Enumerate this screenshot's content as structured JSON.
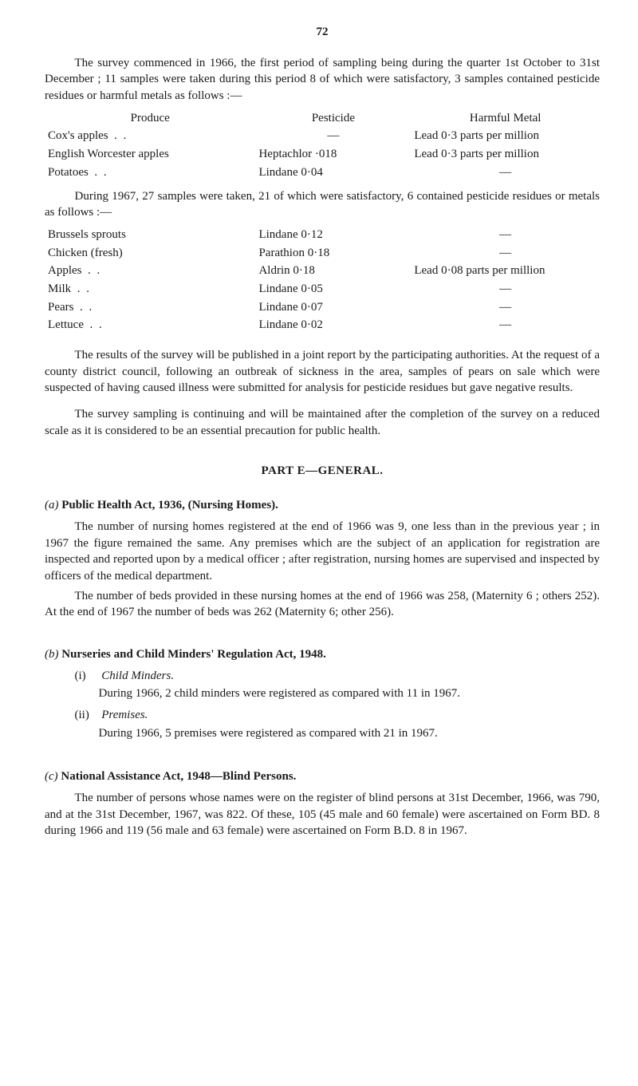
{
  "page_number": "72",
  "intro_paragraph": "The survey commenced in 1966, the first period of sampling being during the quarter 1st October to 31st December ; 11 samples were taken during this period 8 of which were satisfactory, 3 samples contained pesticide residues or harmful metals as follows :—",
  "table1": {
    "headers": {
      "produce": "Produce",
      "pesticide": "Pesticide",
      "metal": "Harmful Metal"
    },
    "rows": [
      {
        "produce": "Cox's apples",
        "pesticide": "—",
        "metal": "Lead 0·3 parts per million"
      },
      {
        "produce": "English Worcester apples",
        "pesticide": "Heptachlor ·018",
        "metal": "Lead 0·3 parts per million"
      },
      {
        "produce": "Potatoes",
        "pesticide": "Lindane 0·04",
        "metal": "—"
      }
    ]
  },
  "mid_paragraph": "During 1967, 27 samples were taken, 21 of which were satisfactory, 6 contained pesticide residues or metals as follows :—",
  "table2": {
    "rows": [
      {
        "produce": "Brussels sprouts",
        "pesticide": "Lindane 0·12",
        "metal": "—"
      },
      {
        "produce": "Chicken (fresh)",
        "pesticide": "Parathion 0·18",
        "metal": "—"
      },
      {
        "produce": "Apples",
        "pesticide": "Aldrin 0·18",
        "metal": "Lead 0·08 parts per million"
      },
      {
        "produce": "Milk",
        "pesticide": "Lindane 0·05",
        "metal": "—"
      },
      {
        "produce": "Pears",
        "pesticide": "Lindane 0·07",
        "metal": "—"
      },
      {
        "produce": "Lettuce",
        "pesticide": "Lindane 0·02",
        "metal": "—"
      }
    ]
  },
  "results_paragraph": "The results of the survey will be published in a joint report by the participating authorities. At the request of a county district council, following an outbreak of sickness in the area, samples of pears on sale which were suspected of having caused illness were submitted for analysis for pesticide residues but gave negative results.",
  "continuing_paragraph": "The survey sampling is continuing and will be maintained after the completion of the survey on a reduced scale as it is considered to be an essential precaution for public health.",
  "part_title": "PART E—GENERAL.",
  "section_a": {
    "heading_marker": "(a)",
    "heading_text": "Public Health Act, 1936, (Nursing Homes).",
    "p1": "The number of nursing homes registered at the end of 1966 was 9, one less than in the previous year ; in 1967 the figure remained the same. Any premises which are the subject of an application for registration are inspected and reported upon by a medical officer ; after registration, nursing homes are supervised and inspected by officers of the medical department.",
    "p2": "The number of beds provided in these nursing homes at the end of 1966 was 258, (Maternity 6 ; others 252). At the end of 1967 the number of beds was 262 (Maternity 6; other 256)."
  },
  "section_b": {
    "heading_marker": "(b)",
    "heading_text": "Nurseries and Child Minders' Regulation Act, 1948.",
    "item_i_label": "(i)",
    "item_i_title": "Child Minders.",
    "item_i_line": "During 1966, 2 child minders were registered as compared with 11 in 1967.",
    "item_ii_label": "(ii)",
    "item_ii_title": "Premises.",
    "item_ii_line": "During 1966, 5 premises were registered as compared with 21 in 1967."
  },
  "section_c": {
    "heading_marker": "(c)",
    "heading_text": "National Assistance Act, 1948—Blind Persons.",
    "p1": "The number of persons whose names were on the register of blind persons at 31st December, 1966, was 790, and at the 31st December, 1967, was 822. Of these, 105 (45 male and 60 female) were ascertained on Form BD. 8 during 1966 and 119 (56 male and 63 female) were ascertained on Form B.D. 8 in 1967."
  },
  "dots": ". ."
}
